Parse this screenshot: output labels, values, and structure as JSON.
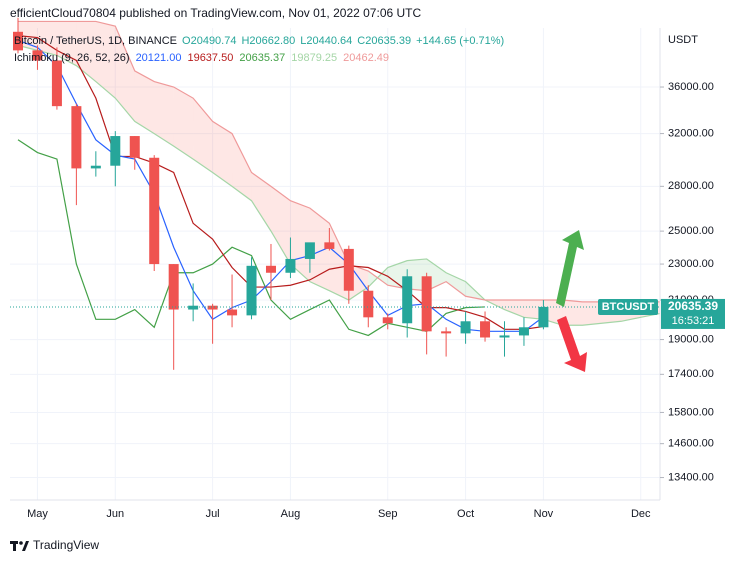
{
  "header": {
    "publisher": "efficientCloud70804 published on TradingView.com, Nov 01, 2022 07:06 UTC"
  },
  "chart_data": {
    "type": "candlestick",
    "symbol": "Bitcoin / TetherUS, 1D, BINANCE",
    "ohlc_legend": [
      "O20490.74",
      "H20662.80",
      "L20440.64",
      "C20635.39",
      "+144.65 (+0.71%)"
    ],
    "indicator": {
      "name": "Ichimoku (9, 26, 52, 26)",
      "values": [
        "20121.00",
        "19637.50",
        "20635.37",
        "19879.25",
        "20462.49"
      ]
    },
    "currency": "USDT",
    "categories": [
      null,
      "May",
      null,
      null,
      null,
      "Jun",
      null,
      null,
      null,
      null,
      "Jul",
      null,
      null,
      null,
      "Aug",
      null,
      null,
      null,
      null,
      "Sep",
      null,
      null,
      null,
      "Oct",
      null,
      null,
      null,
      "Nov",
      null,
      null,
      null,
      null,
      "Dec",
      null
    ],
    "open": [
      41400,
      39500,
      38500,
      34300,
      29300,
      29500,
      31800,
      30100,
      23000,
      20500,
      20700,
      20500,
      20200,
      22900,
      22500,
      23300,
      24300,
      23900,
      21500,
      20100,
      19800,
      22300,
      19400,
      19300,
      19900,
      19100,
      19200,
      19600,
      null,
      null,
      null,
      null,
      null,
      null
    ],
    "high": [
      42900,
      40000,
      39800,
      34500,
      30600,
      32200,
      31800,
      30300,
      23000,
      21900,
      20800,
      22400,
      23400,
      24200,
      24600,
      24100,
      25200,
      24100,
      21800,
      20300,
      22700,
      22500,
      19600,
      20400,
      20400,
      19900,
      20100,
      21000,
      null,
      null,
      null,
      null,
      null,
      null
    ],
    "low": [
      39200,
      37600,
      34000,
      26700,
      28700,
      28000,
      29200,
      22600,
      17600,
      19900,
      18800,
      19600,
      20000,
      21000,
      22200,
      22500,
      23800,
      20800,
      19600,
      19500,
      19100,
      18300,
      18200,
      18800,
      18900,
      18200,
      18700,
      19500,
      null,
      null,
      null,
      null,
      null,
      null
    ],
    "close": [
      39500,
      38500,
      34300,
      29300,
      29500,
      31800,
      30100,
      23000,
      20500,
      20700,
      20500,
      20200,
      22900,
      22500,
      23300,
      24300,
      23900,
      21500,
      20100,
      19800,
      22300,
      19400,
      19300,
      19900,
      19100,
      19200,
      19600,
      20635.39,
      null,
      null,
      null,
      null,
      null,
      null
    ],
    "up_color": "#26a69a",
    "down_color": "#ef5350",
    "ichimoku": {
      "conversion": {
        "color": "#2962ff",
        "values": [
          40500,
          39800,
          38000,
          34500,
          31500,
          30300,
          30000,
          27500,
          24000,
          21500,
          20000,
          20600,
          21000,
          22000,
          23200,
          23500,
          24000,
          23000,
          21500,
          20200,
          20700,
          20800,
          20000,
          19500,
          19400,
          19400,
          19400,
          20121,
          null,
          null,
          null,
          null,
          null,
          null
        ]
      },
      "base": {
        "color": "#b71c1c",
        "values": [
          41000,
          40800,
          39500,
          38500,
          35000,
          30200,
          30200,
          29700,
          29000,
          25500,
          24500,
          22800,
          21700,
          21700,
          21800,
          22100,
          22700,
          22900,
          22800,
          22300,
          21500,
          20600,
          20600,
          20400,
          20100,
          19500,
          19500,
          19637.5,
          null,
          null,
          null,
          null,
          null,
          null
        ]
      },
      "lagging": {
        "color": "#43a047",
        "values": [
          31500,
          30500,
          30000,
          23000,
          20000,
          20000,
          20500,
          19600,
          22500,
          22500,
          23000,
          24000,
          23500,
          21000,
          20000,
          20500,
          21000,
          19500,
          19200,
          19800,
          19600,
          19400,
          20300,
          20600,
          20635.37,
          null,
          null,
          null,
          null,
          null,
          null,
          null,
          null,
          null
        ]
      },
      "span_a": {
        "color": "#a5d6a7",
        "values": [
          40000,
          39500,
          39000,
          38000,
          36500,
          35000,
          33000,
          32000,
          31000,
          30000,
          29000,
          28000,
          27000,
          25000,
          23000,
          22000,
          21500,
          21000,
          21700,
          22800,
          23200,
          23300,
          22500,
          22000,
          21000,
          20500,
          20100,
          20000,
          19700,
          19700,
          19800,
          19900,
          20100,
          20300
        ]
      },
      "span_b": {
        "color": "#ef9a9a",
        "values": [
          42500,
          42500,
          42500,
          42500,
          42500,
          42000,
          37500,
          36500,
          36000,
          35000,
          33000,
          32000,
          29000,
          28000,
          27000,
          26500,
          25500,
          23000,
          22600,
          21800,
          21600,
          21500,
          22000,
          21200,
          21000,
          21000,
          21000,
          21000,
          21000,
          20900,
          20900,
          20900,
          20900,
          20900
        ]
      },
      "cloud_up_color": "rgba(76,175,80,0.12)",
      "cloud_down_color": "rgba(244,67,54,0.13)"
    },
    "last_price": {
      "symbol": "BTCUSDT",
      "value": 20635.39,
      "countdown": "16:53:21",
      "color": "#26a69a"
    },
    "ylim": [
      12660,
      41800
    ],
    "log_scale": true,
    "grid": true,
    "yticks": [
      {
        "value": 36000,
        "label": "36000.00"
      },
      {
        "value": 32000,
        "label": "32000.00"
      },
      {
        "value": 28000,
        "label": "28000.00"
      },
      {
        "value": 25000,
        "label": "25000.00"
      },
      {
        "value": 23000,
        "label": "23000.00"
      },
      {
        "value": 21000,
        "label": "21000.00"
      },
      {
        "value": 19000,
        "label": "19000.00"
      },
      {
        "value": 17400,
        "label": "17400.00"
      },
      {
        "value": 15800,
        "label": "15800.00"
      },
      {
        "value": 14600,
        "label": "14600.00"
      },
      {
        "value": 13400,
        "label": "13400.00"
      }
    ]
  },
  "footer": {
    "brand": "TradingView"
  }
}
